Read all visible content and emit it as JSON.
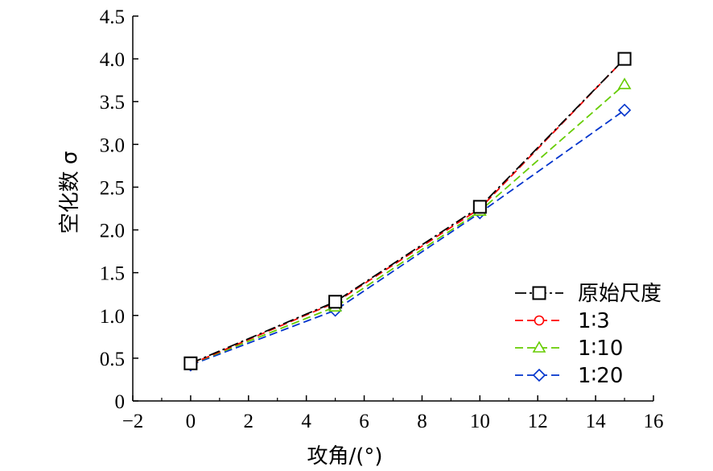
{
  "chart_data": {
    "type": "line",
    "xlabel": "攻角/(°)",
    "ylabel": "空化数 σ",
    "xlim": [
      -2,
      16
    ],
    "ylim": [
      0,
      4.5
    ],
    "x_ticks": [
      -2,
      0,
      2,
      4,
      6,
      8,
      10,
      12,
      14,
      16
    ],
    "x_tick_labels": [
      "−2",
      "0",
      "2",
      "4",
      "6",
      "8",
      "10",
      "12",
      "14",
      "16"
    ],
    "y_ticks": [
      0,
      0.5,
      1.0,
      1.5,
      2.0,
      2.5,
      3.0,
      3.5,
      4.0,
      4.5
    ],
    "y_tick_labels": [
      "0",
      "0.5",
      "1.0",
      "1.5",
      "2.0",
      "2.5",
      "3.0",
      "3.5",
      "4.0",
      "4.5"
    ],
    "grid": false,
    "legend_position": "bottom-right",
    "x": [
      0,
      5,
      10,
      15
    ],
    "series": [
      {
        "name": "原始尺度",
        "values": [
          0.44,
          1.16,
          2.27,
          4.0
        ],
        "color": "#000000",
        "marker": "square",
        "dash": "dash-dot"
      },
      {
        "name": "1∶3",
        "values": [
          0.43,
          1.15,
          2.25,
          4.0
        ],
        "color": "#ff0000",
        "marker": "circle",
        "dash": "dash"
      },
      {
        "name": "1∶10",
        "values": [
          0.43,
          1.1,
          2.22,
          3.7
        ],
        "color": "#66cc00",
        "marker": "triangle",
        "dash": "dash"
      },
      {
        "name": "1∶20",
        "values": [
          0.42,
          1.06,
          2.2,
          3.4
        ],
        "color": "#0033cc",
        "marker": "diamond",
        "dash": "dash"
      }
    ]
  }
}
